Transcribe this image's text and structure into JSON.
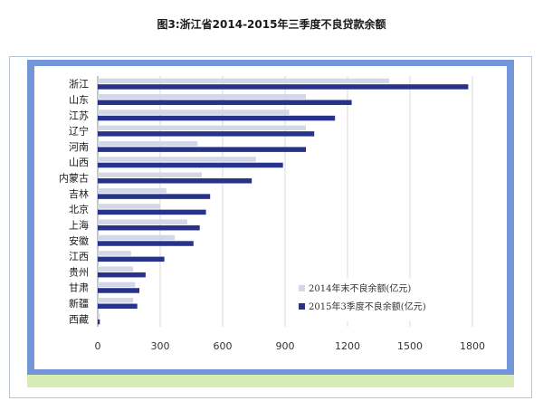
{
  "page": {
    "title": "图3:浙江省2014-2015年三季度不良贷款余额"
  },
  "colors": {
    "series_2014": "#d2d8e8",
    "series_2015": "#27338b",
    "border_blue": "#7396d8",
    "strip_green": "#d6ebb6",
    "grid": "#d9d9d9"
  },
  "chart_data": {
    "type": "bar",
    "orientation": "horizontal",
    "title": "",
    "xlabel": "",
    "ylabel": "",
    "categories": [
      "浙江",
      "山东",
      "江苏",
      "辽宁",
      "河南",
      "山西",
      "内蒙古",
      "吉林",
      "北京",
      "上海",
      "安徽",
      "江西",
      "贵州",
      "甘肃",
      "新疆",
      "西藏"
    ],
    "series": [
      {
        "name": "2014年末不良余额(亿元)",
        "values": [
          1400,
          1000,
          920,
          1000,
          480,
          760,
          500,
          330,
          300,
          430,
          370,
          160,
          170,
          180,
          170,
          10
        ]
      },
      {
        "name": "2015年3季度不良余额(亿元)",
        "values": [
          1780,
          1220,
          1140,
          1040,
          1000,
          890,
          740,
          540,
          520,
          490,
          460,
          320,
          230,
          200,
          190,
          10
        ]
      }
    ],
    "xlim": [
      0,
      1800
    ],
    "xticks": [
      "0",
      "300",
      "600",
      "900",
      "1200",
      "1500",
      "1800"
    ],
    "grid": true,
    "legend_position": "bottom-right"
  }
}
